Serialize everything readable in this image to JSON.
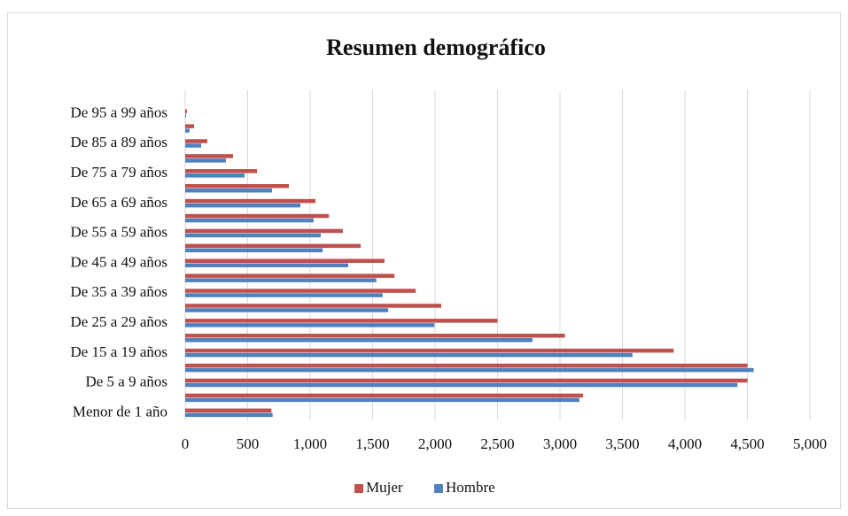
{
  "chart_data": {
    "type": "bar",
    "orientation": "horizontal",
    "title": "Resumen demográfico",
    "categories": [
      "Menor de 1 año",
      null,
      "De 5 a 9 años",
      null,
      "De 15 a 19 años",
      null,
      "De 25 a 29 años",
      null,
      "De 35 a 39 años",
      null,
      "De 45 a 49 años",
      null,
      "De 55 a 59 años",
      null,
      "De 65 a 69 años",
      null,
      "De 75 a 79 años",
      null,
      "De 85 a 89 años",
      null,
      "De 95 a 99 años"
    ],
    "series": [
      {
        "name": "Mujer",
        "color": "#c0504d",
        "values": [
          690,
          3185,
          4500,
          4500,
          3910,
          3040,
          2500,
          2050,
          1845,
          1675,
          1595,
          1405,
          1262,
          1150,
          1043,
          830,
          575,
          383,
          177,
          71,
          14
        ]
      },
      {
        "name": "Hombre",
        "color": "#4f81bd",
        "values": [
          700,
          3155,
          4420,
          4550,
          3580,
          2780,
          1995,
          1625,
          1580,
          1530,
          1305,
          1100,
          1085,
          1028,
          922,
          695,
          475,
          326,
          128,
          35,
          7
        ]
      }
    ],
    "xlim": [
      0,
      5000
    ],
    "xticks": [
      0,
      500,
      {
        "value": 1000,
        "label": "1,000"
      },
      {
        "value": 1500,
        "label": "1,500"
      },
      {
        "value": 2000,
        "label": "2,000"
      },
      {
        "value": 2500,
        "label": "2,500"
      },
      {
        "value": 3000,
        "label": "3,000"
      },
      {
        "value": 3500,
        "label": "3,500"
      },
      {
        "value": 4000,
        "label": "4,000"
      },
      {
        "value": 4500,
        "label": "4,500"
      },
      {
        "value": 5000,
        "label": "5,000"
      }
    ],
    "grid": true,
    "legend": "bottom"
  }
}
